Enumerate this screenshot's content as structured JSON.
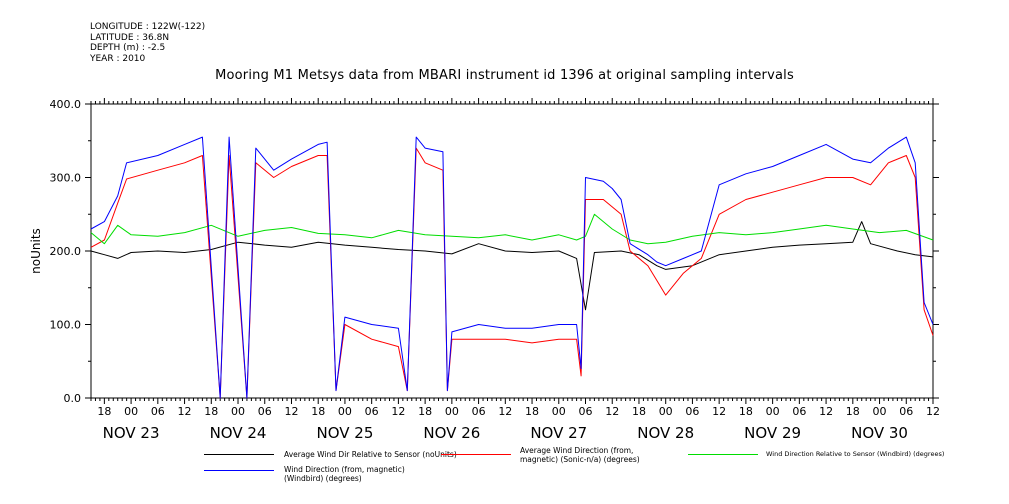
{
  "header": {
    "longitude": "LONGITUDE : 122W(-122)",
    "latitude": "LATITUDE : 36.8N",
    "depth": "DEPTH (m) : -2.5",
    "year": "YEAR : 2010"
  },
  "chart_data": {
    "type": "line",
    "title": "Mooring M1 Metsys data from MBARI instrument id 1396 at original sampling intervals",
    "ylabel": "noUnits",
    "xlabel": "",
    "ylim": [
      0,
      400
    ],
    "yticks": [
      0,
      100,
      200,
      300,
      400
    ],
    "xlim_hours": [
      -9,
      180
    ],
    "hour_ticks": [
      "18",
      "00",
      "06",
      "12",
      "18",
      "00",
      "06",
      "12",
      "18",
      "00",
      "06",
      "12",
      "18",
      "00",
      "06",
      "12",
      "18",
      "00",
      "06",
      "12",
      "18",
      "00",
      "06",
      "12",
      "18",
      "00",
      "06",
      "12",
      "18",
      "00",
      "06",
      "12"
    ],
    "day_labels": [
      "NOV 23",
      "NOV 24",
      "NOV 25",
      "NOV 26",
      "NOV 27",
      "NOV 28",
      "NOV 29",
      "NOV 30"
    ],
    "grid": false,
    "legend_position": "bottom",
    "series": [
      {
        "name": "Average Wind Dir Relative to Sensor (noUnits)",
        "color": "#000000",
        "points": [
          [
            -9,
            200
          ],
          [
            -6,
            195
          ],
          [
            -3,
            190
          ],
          [
            0,
            198
          ],
          [
            6,
            200
          ],
          [
            12,
            198
          ],
          [
            18,
            202
          ],
          [
            24,
            212
          ],
          [
            30,
            208
          ],
          [
            36,
            205
          ],
          [
            42,
            212
          ],
          [
            48,
            208
          ],
          [
            54,
            205
          ],
          [
            60,
            202
          ],
          [
            66,
            200
          ],
          [
            72,
            196
          ],
          [
            78,
            210
          ],
          [
            84,
            200
          ],
          [
            90,
            198
          ],
          [
            96,
            200
          ],
          [
            100,
            190
          ],
          [
            102,
            120
          ],
          [
            104,
            198
          ],
          [
            110,
            200
          ],
          [
            114,
            195
          ],
          [
            118,
            180
          ],
          [
            120,
            175
          ],
          [
            126,
            180
          ],
          [
            132,
            195
          ],
          [
            138,
            200
          ],
          [
            144,
            205
          ],
          [
            150,
            208
          ],
          [
            156,
            210
          ],
          [
            162,
            212
          ],
          [
            164,
            240
          ],
          [
            166,
            210
          ],
          [
            172,
            200
          ],
          [
            176,
            195
          ],
          [
            180,
            192
          ]
        ]
      },
      {
        "name": "Average Wind Direction (from, magnetic) (Sonic-n/a) (degrees)",
        "color": "#ff0000",
        "points": [
          [
            -9,
            205
          ],
          [
            -6,
            215
          ],
          [
            -3,
            265
          ],
          [
            -1,
            298
          ],
          [
            6,
            310
          ],
          [
            12,
            320
          ],
          [
            16,
            330
          ],
          [
            20,
            0
          ],
          [
            22,
            330
          ],
          [
            26,
            0
          ],
          [
            28,
            320
          ],
          [
            32,
            300
          ],
          [
            36,
            315
          ],
          [
            42,
            330
          ],
          [
            44,
            330
          ],
          [
            46,
            10
          ],
          [
            48,
            100
          ],
          [
            54,
            80
          ],
          [
            60,
            70
          ],
          [
            62,
            10
          ],
          [
            64,
            340
          ],
          [
            66,
            320
          ],
          [
            70,
            310
          ],
          [
            71,
            10
          ],
          [
            72,
            80
          ],
          [
            78,
            80
          ],
          [
            84,
            80
          ],
          [
            90,
            75
          ],
          [
            96,
            80
          ],
          [
            100,
            80
          ],
          [
            101,
            30
          ],
          [
            102,
            270
          ],
          [
            106,
            270
          ],
          [
            108,
            260
          ],
          [
            110,
            250
          ],
          [
            112,
            200
          ],
          [
            116,
            180
          ],
          [
            118,
            160
          ],
          [
            120,
            140
          ],
          [
            124,
            170
          ],
          [
            128,
            190
          ],
          [
            132,
            250
          ],
          [
            138,
            270
          ],
          [
            144,
            280
          ],
          [
            150,
            290
          ],
          [
            156,
            300
          ],
          [
            162,
            300
          ],
          [
            166,
            290
          ],
          [
            170,
            320
          ],
          [
            174,
            330
          ],
          [
            176,
            300
          ],
          [
            178,
            120
          ],
          [
            180,
            85
          ]
        ]
      },
      {
        "name": "Wind Direction Relative to Sensor (Windbird) (degrees)",
        "color": "#00dd00",
        "points": [
          [
            -9,
            225
          ],
          [
            -6,
            210
          ],
          [
            -3,
            235
          ],
          [
            0,
            222
          ],
          [
            6,
            220
          ],
          [
            12,
            225
          ],
          [
            18,
            235
          ],
          [
            24,
            220
          ],
          [
            30,
            228
          ],
          [
            36,
            232
          ],
          [
            42,
            224
          ],
          [
            48,
            222
          ],
          [
            54,
            218
          ],
          [
            60,
            228
          ],
          [
            66,
            222
          ],
          [
            72,
            220
          ],
          [
            78,
            218
          ],
          [
            84,
            222
          ],
          [
            90,
            215
          ],
          [
            96,
            222
          ],
          [
            100,
            215
          ],
          [
            102,
            220
          ],
          [
            104,
            250
          ],
          [
            108,
            230
          ],
          [
            112,
            215
          ],
          [
            116,
            210
          ],
          [
            120,
            212
          ],
          [
            126,
            220
          ],
          [
            132,
            225
          ],
          [
            138,
            222
          ],
          [
            144,
            225
          ],
          [
            150,
            230
          ],
          [
            156,
            235
          ],
          [
            162,
            230
          ],
          [
            168,
            225
          ],
          [
            174,
            228
          ],
          [
            180,
            215
          ]
        ]
      },
      {
        "name": "Wind Direction (from, magnetic) (Windbird) (degrees)",
        "color": "#0000ff",
        "points": [
          [
            -9,
            230
          ],
          [
            -6,
            240
          ],
          [
            -3,
            275
          ],
          [
            -1,
            320
          ],
          [
            6,
            330
          ],
          [
            12,
            345
          ],
          [
            16,
            355
          ],
          [
            20,
            0
          ],
          [
            22,
            355
          ],
          [
            26,
            0
          ],
          [
            28,
            340
          ],
          [
            32,
            310
          ],
          [
            36,
            325
          ],
          [
            42,
            345
          ],
          [
            44,
            348
          ],
          [
            46,
            10
          ],
          [
            48,
            110
          ],
          [
            54,
            100
          ],
          [
            60,
            95
          ],
          [
            62,
            10
          ],
          [
            64,
            355
          ],
          [
            66,
            340
          ],
          [
            70,
            335
          ],
          [
            71,
            10
          ],
          [
            72,
            90
          ],
          [
            78,
            100
          ],
          [
            84,
            95
          ],
          [
            90,
            95
          ],
          [
            96,
            100
          ],
          [
            100,
            100
          ],
          [
            101,
            40
          ],
          [
            102,
            300
          ],
          [
            106,
            295
          ],
          [
            108,
            285
          ],
          [
            110,
            270
          ],
          [
            112,
            210
          ],
          [
            116,
            195
          ],
          [
            118,
            185
          ],
          [
            120,
            180
          ],
          [
            124,
            190
          ],
          [
            128,
            200
          ],
          [
            132,
            290
          ],
          [
            138,
            305
          ],
          [
            144,
            315
          ],
          [
            150,
            330
          ],
          [
            156,
            345
          ],
          [
            162,
            325
          ],
          [
            166,
            320
          ],
          [
            170,
            340
          ],
          [
            174,
            355
          ],
          [
            176,
            320
          ],
          [
            178,
            130
          ],
          [
            180,
            100
          ]
        ]
      }
    ]
  }
}
